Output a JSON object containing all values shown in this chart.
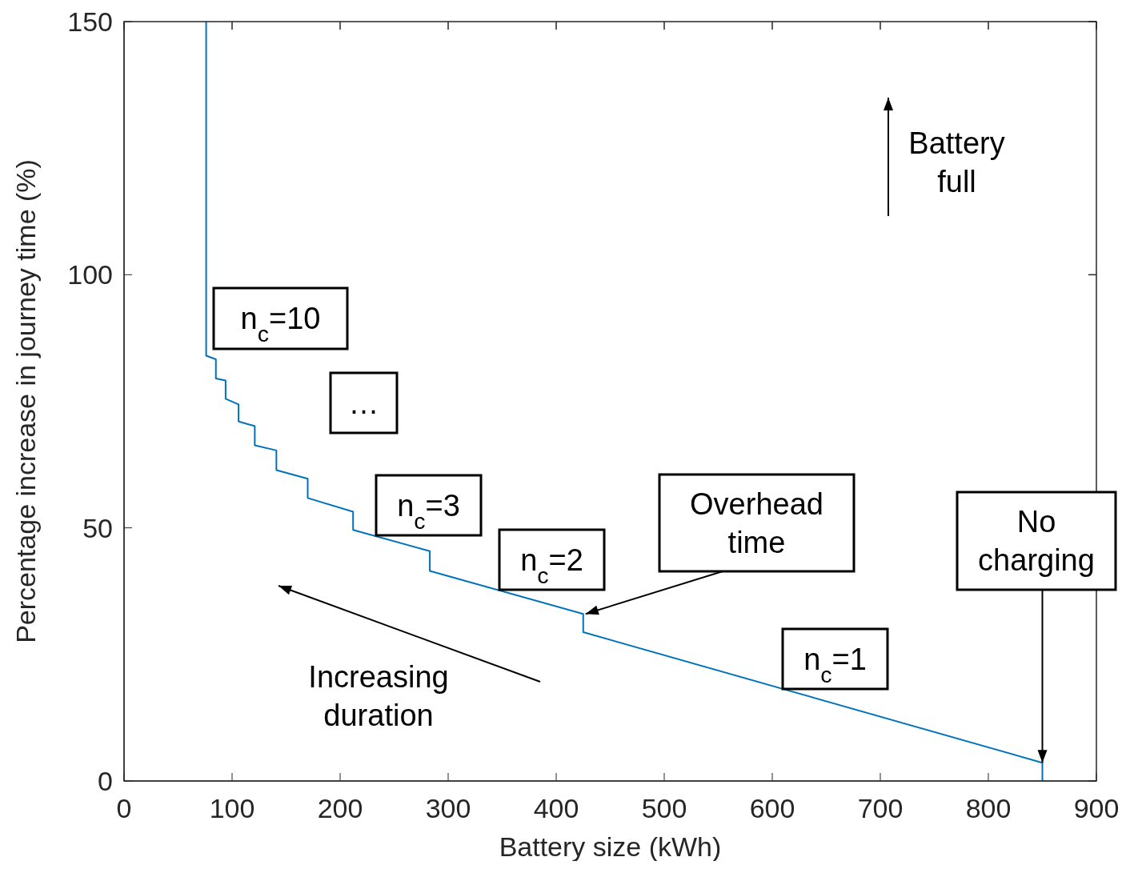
{
  "chart_data": {
    "type": "line",
    "xlabel": "Battery size (kWh)",
    "ylabel": "Percentage increase in journey time (%)",
    "x": [
      76,
      76,
      85,
      85,
      94,
      94,
      106,
      106,
      121,
      121,
      141,
      141,
      170,
      170,
      212,
      212,
      283,
      283,
      425,
      425,
      850,
      850
    ],
    "series": [
      {
        "color": "#0072bd",
        "values": [
          150,
          84,
          83.3,
          79.5,
          79.1,
          75.5,
          74.4,
          71,
          70.1,
          66.3,
          65.3,
          61.4,
          59.7,
          55.9,
          53.2,
          49.6,
          45.4,
          41.5,
          33,
          29.4,
          3.6,
          0
        ]
      }
    ],
    "xlim": [
      0,
      900
    ],
    "xticks": [
      0,
      100,
      200,
      300,
      400,
      500,
      600,
      700,
      800,
      900
    ],
    "ylim": [
      0,
      150
    ],
    "yticks": [
      0,
      50,
      100,
      150
    ],
    "grid": false,
    "marker": "none",
    "line_style": "solid",
    "annotations": [
      "n$_{c}$=10",
      "…",
      "n$_{c}$=3",
      "n$_{c}$=2",
      {
        "text": "Overhead time",
        "x": 425,
        "y": 33
      },
      {
        "text": "No charging",
        "x": 850,
        "y": 3.6
      },
      "n$_{c}$=1",
      "Increasing duration",
      "Battery full"
    ]
  }
}
